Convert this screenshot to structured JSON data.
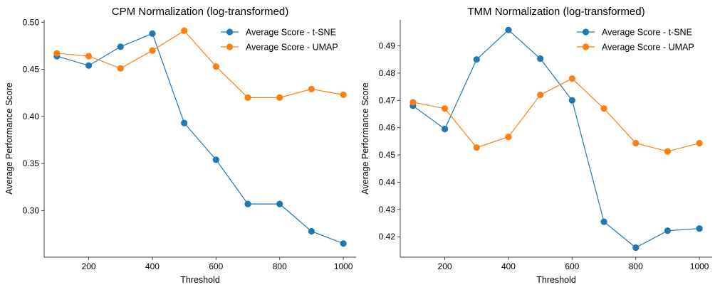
{
  "chart_data": [
    {
      "type": "line",
      "title": "CPM Normalization (log-transformed)",
      "xlabel": "Threshold",
      "ylabel": "Average Performance Score",
      "xlim": [
        60,
        1040
      ],
      "ylim": [
        0.2505,
        0.5025
      ],
      "xticks": [
        200,
        400,
        600,
        800,
        1000
      ],
      "yticks": [
        0.3,
        0.35,
        0.4,
        0.45,
        0.5
      ],
      "ytick_decimals": 2,
      "x": [
        100,
        200,
        300,
        400,
        500,
        600,
        700,
        800,
        900,
        1000
      ],
      "series": [
        {
          "name": "Average Score - t-SNE",
          "color": "#1f77b4",
          "values": [
            0.464,
            0.454,
            0.474,
            0.488,
            0.393,
            0.354,
            0.307,
            0.307,
            0.278,
            0.265
          ]
        },
        {
          "name": "Average Score - UMAP",
          "color": "#ff7f0e",
          "values": [
            0.467,
            0.464,
            0.451,
            0.47,
            0.491,
            0.453,
            0.42,
            0.42,
            0.429,
            0.423
          ]
        }
      ],
      "legend": "top-right",
      "grid": false
    },
    {
      "type": "line",
      "title": "TMM Normalization (log-transformed)",
      "xlabel": "Threshold",
      "ylabel": "Average Performance Score",
      "xlim": [
        60,
        1040
      ],
      "ylim": [
        0.4125,
        0.4995
      ],
      "xticks": [
        200,
        400,
        600,
        800,
        1000
      ],
      "yticks": [
        0.42,
        0.43,
        0.44,
        0.45,
        0.46,
        0.47,
        0.48,
        0.49
      ],
      "ytick_decimals": 2,
      "x": [
        100,
        200,
        300,
        400,
        500,
        600,
        700,
        800,
        900,
        1000
      ],
      "series": [
        {
          "name": "Average Score - t-SNE",
          "color": "#1f77b4",
          "values": [
            0.468,
            0.4595,
            0.485,
            0.4958,
            0.4853,
            0.47,
            0.4255,
            0.416,
            0.4222,
            0.423
          ]
        },
        {
          "name": "Average Score - UMAP",
          "color": "#ff7f0e",
          "values": [
            0.4693,
            0.467,
            0.4527,
            0.4566,
            0.472,
            0.478,
            0.467,
            0.4543,
            0.4513,
            0.4543
          ]
        }
      ],
      "legend": "top-right",
      "grid": false
    }
  ]
}
